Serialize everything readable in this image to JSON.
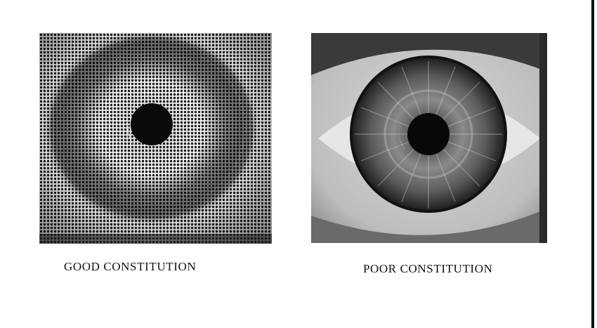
{
  "figures": [
    {
      "id": "good",
      "image": "halftone-iris-photo-good-constitution",
      "caption": "GOOD CONSTITUTION"
    },
    {
      "id": "poor",
      "image": "iris-photo-poor-constitution",
      "caption": "POOR CONSTITUTION"
    }
  ]
}
